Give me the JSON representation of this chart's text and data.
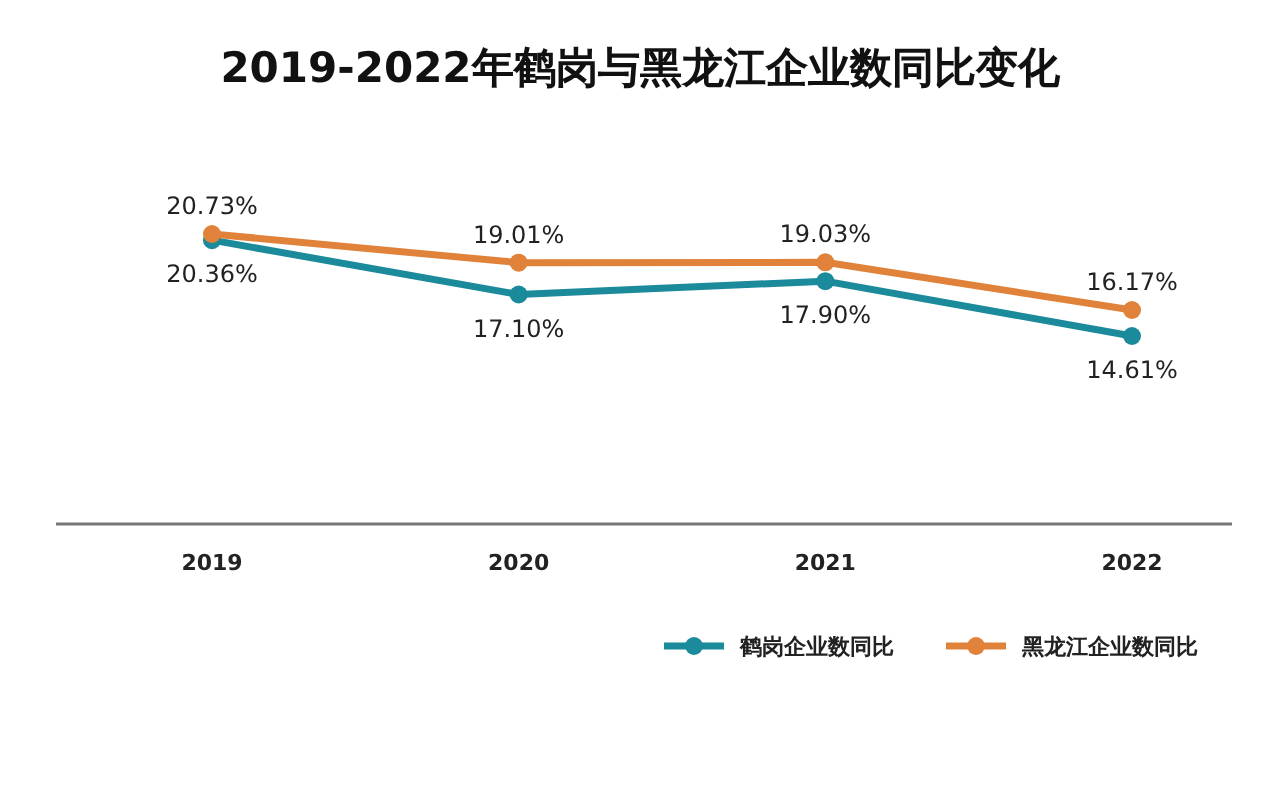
{
  "chart_data": {
    "type": "line",
    "title": "2019-2022年鹤岗与黑龙江企业数同比变化",
    "categories": [
      "2019",
      "2020",
      "2021",
      "2022"
    ],
    "tick_labels": "x",
    "legend": "bottom right",
    "marker": "circle",
    "line_style": "solid",
    "series": [
      {
        "name": "鹤岗企业数同比",
        "color": "#1b8a9a",
        "values": [
          20.36,
          17.1,
          17.9,
          14.61
        ],
        "value_labels": [
          "20.36%",
          "17.10%",
          "17.90%",
          "14.61%"
        ]
      },
      {
        "name": "黑龙江企业数同比",
        "color": "#e0823a",
        "values": [
          20.73,
          19.01,
          19.03,
          16.17
        ],
        "value_labels": [
          "20.73%",
          "19.01%",
          "19.03%",
          "16.17%"
        ]
      }
    ]
  }
}
